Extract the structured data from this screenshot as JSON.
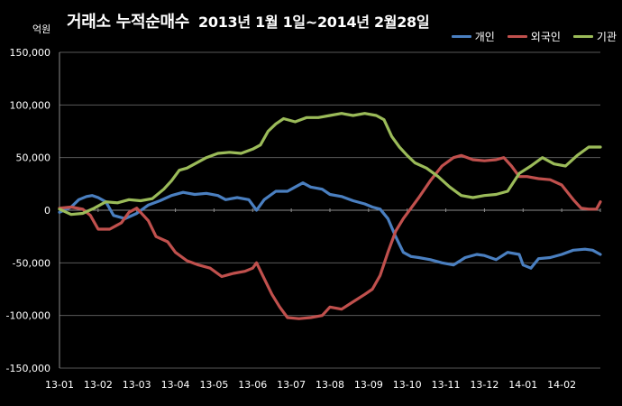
{
  "chart_data": {
    "type": "line",
    "title": "거래소 누적순매수",
    "subtitle": "2013년 1월 1일~2014년 2월28일",
    "unit_label": "억원",
    "ylim": [
      -150000,
      150000
    ],
    "y_ticks": [
      150000,
      100000,
      50000,
      0,
      -50000,
      -100000,
      -150000
    ],
    "y_tick_labels": [
      "150,000",
      "100,000",
      "50,000",
      "0",
      "-50,000",
      "-100,000",
      "-150,000"
    ],
    "x_tick_labels": [
      "13-01",
      "13-02",
      "13-03",
      "13-04",
      "13-05",
      "13-06",
      "13-07",
      "13-08",
      "13-09",
      "13-10",
      "13-11",
      "13-12",
      "14-01",
      "14-02"
    ],
    "grid": true,
    "legend_position": "top-right",
    "colors": {
      "개인": "#4a7fc0",
      "외국인": "#c0504d",
      "기관": "#9bbb59",
      "background": "#000000",
      "grid": "#595959"
    },
    "series": [
      {
        "name": "개인",
        "points": [
          [
            0,
            -2000
          ],
          [
            0.3,
            3000
          ],
          [
            0.5,
            10000
          ],
          [
            0.7,
            13000
          ],
          [
            0.85,
            14000
          ],
          [
            1.0,
            12000
          ],
          [
            1.2,
            8000
          ],
          [
            1.4,
            -5000
          ],
          [
            1.7,
            -8000
          ],
          [
            2.0,
            -3000
          ],
          [
            2.3,
            5000
          ],
          [
            2.6,
            9000
          ],
          [
            2.9,
            14000
          ],
          [
            3.2,
            17000
          ],
          [
            3.5,
            15000
          ],
          [
            3.8,
            16000
          ],
          [
            4.1,
            14000
          ],
          [
            4.3,
            10000
          ],
          [
            4.6,
            12000
          ],
          [
            4.9,
            10000
          ],
          [
            5.1,
            0
          ],
          [
            5.3,
            10000
          ],
          [
            5.6,
            18000
          ],
          [
            5.9,
            18000
          ],
          [
            6.1,
            22000
          ],
          [
            6.3,
            26000
          ],
          [
            6.5,
            22000
          ],
          [
            6.8,
            20000
          ],
          [
            7.0,
            15000
          ],
          [
            7.3,
            13000
          ],
          [
            7.6,
            9000
          ],
          [
            7.9,
            6000
          ],
          [
            8.1,
            3000
          ],
          [
            8.3,
            1000
          ],
          [
            8.5,
            -8000
          ],
          [
            8.7,
            -25000
          ],
          [
            8.9,
            -40000
          ],
          [
            9.1,
            -44000
          ],
          [
            9.3,
            -45000
          ],
          [
            9.6,
            -47000
          ],
          [
            9.9,
            -50000
          ],
          [
            10.2,
            -52000
          ],
          [
            10.5,
            -45000
          ],
          [
            10.8,
            -42000
          ],
          [
            11.0,
            -43000
          ],
          [
            11.3,
            -47000
          ],
          [
            11.6,
            -40000
          ],
          [
            11.9,
            -42000
          ],
          [
            12.0,
            -52000
          ],
          [
            12.2,
            -55000
          ],
          [
            12.4,
            -46000
          ],
          [
            12.7,
            -45000
          ],
          [
            13.0,
            -42000
          ],
          [
            13.3,
            -38000
          ],
          [
            13.6,
            -37000
          ],
          [
            13.8,
            -38000
          ],
          [
            14.0,
            -42000
          ]
        ]
      },
      {
        "name": "외국인",
        "points": [
          [
            0,
            2000
          ],
          [
            0.3,
            3000
          ],
          [
            0.6,
            1000
          ],
          [
            0.8,
            -5000
          ],
          [
            1.0,
            -18000
          ],
          [
            1.3,
            -18000
          ],
          [
            1.6,
            -12000
          ],
          [
            1.8,
            -2000
          ],
          [
            2.0,
            2000
          ],
          [
            2.3,
            -10000
          ],
          [
            2.5,
            -25000
          ],
          [
            2.8,
            -30000
          ],
          [
            3.0,
            -40000
          ],
          [
            3.3,
            -48000
          ],
          [
            3.6,
            -52000
          ],
          [
            3.9,
            -55000
          ],
          [
            4.2,
            -63000
          ],
          [
            4.5,
            -60000
          ],
          [
            4.8,
            -58000
          ],
          [
            5.0,
            -55000
          ],
          [
            5.1,
            -50000
          ],
          [
            5.3,
            -65000
          ],
          [
            5.5,
            -80000
          ],
          [
            5.7,
            -92000
          ],
          [
            5.9,
            -102000
          ],
          [
            6.2,
            -103000
          ],
          [
            6.5,
            -102000
          ],
          [
            6.8,
            -100000
          ],
          [
            7.0,
            -92000
          ],
          [
            7.3,
            -94000
          ],
          [
            7.6,
            -87000
          ],
          [
            7.9,
            -80000
          ],
          [
            8.1,
            -75000
          ],
          [
            8.3,
            -62000
          ],
          [
            8.5,
            -40000
          ],
          [
            8.7,
            -20000
          ],
          [
            8.9,
            -8000
          ],
          [
            9.1,
            2000
          ],
          [
            9.3,
            12000
          ],
          [
            9.6,
            28000
          ],
          [
            9.9,
            42000
          ],
          [
            10.2,
            50000
          ],
          [
            10.4,
            52000
          ],
          [
            10.7,
            48000
          ],
          [
            11.0,
            47000
          ],
          [
            11.3,
            48000
          ],
          [
            11.5,
            50000
          ],
          [
            11.7,
            42000
          ],
          [
            11.9,
            32000
          ],
          [
            12.1,
            32000
          ],
          [
            12.4,
            30000
          ],
          [
            12.7,
            29000
          ],
          [
            13.0,
            24000
          ],
          [
            13.3,
            10000
          ],
          [
            13.5,
            2000
          ],
          [
            13.7,
            1000
          ],
          [
            13.9,
            1000
          ],
          [
            14.0,
            8000
          ]
        ]
      },
      {
        "name": "기관",
        "points": [
          [
            0,
            1000
          ],
          [
            0.3,
            -4000
          ],
          [
            0.6,
            -3000
          ],
          [
            0.9,
            2000
          ],
          [
            1.2,
            8000
          ],
          [
            1.5,
            7000
          ],
          [
            1.8,
            10000
          ],
          [
            2.1,
            9000
          ],
          [
            2.4,
            11000
          ],
          [
            2.7,
            20000
          ],
          [
            2.9,
            28000
          ],
          [
            3.1,
            38000
          ],
          [
            3.3,
            40000
          ],
          [
            3.5,
            44000
          ],
          [
            3.8,
            50000
          ],
          [
            4.1,
            54000
          ],
          [
            4.4,
            55000
          ],
          [
            4.7,
            54000
          ],
          [
            5.0,
            58000
          ],
          [
            5.2,
            62000
          ],
          [
            5.4,
            75000
          ],
          [
            5.6,
            82000
          ],
          [
            5.8,
            87000
          ],
          [
            6.1,
            84000
          ],
          [
            6.4,
            88000
          ],
          [
            6.7,
            88000
          ],
          [
            7.0,
            90000
          ],
          [
            7.3,
            92000
          ],
          [
            7.6,
            90000
          ],
          [
            7.9,
            92000
          ],
          [
            8.2,
            90000
          ],
          [
            8.4,
            86000
          ],
          [
            8.6,
            70000
          ],
          [
            8.8,
            60000
          ],
          [
            9.0,
            52000
          ],
          [
            9.2,
            45000
          ],
          [
            9.5,
            40000
          ],
          [
            9.8,
            32000
          ],
          [
            10.1,
            22000
          ],
          [
            10.4,
            14000
          ],
          [
            10.7,
            12000
          ],
          [
            11.0,
            14000
          ],
          [
            11.3,
            15000
          ],
          [
            11.6,
            18000
          ],
          [
            11.9,
            35000
          ],
          [
            12.2,
            42000
          ],
          [
            12.5,
            50000
          ],
          [
            12.8,
            44000
          ],
          [
            13.1,
            42000
          ],
          [
            13.4,
            52000
          ],
          [
            13.7,
            60000
          ],
          [
            14.0,
            60000
          ]
        ]
      }
    ]
  }
}
